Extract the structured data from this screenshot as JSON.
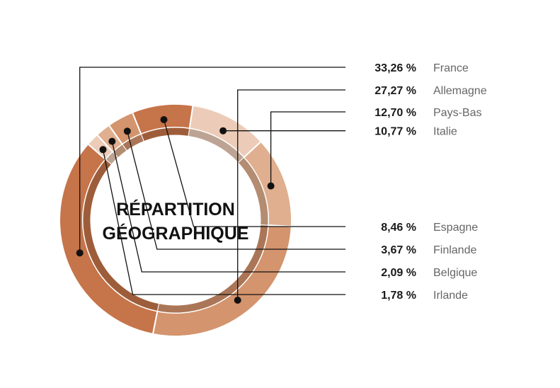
{
  "chart_data": {
    "type": "donut",
    "title_lines": [
      "RÉPARTITION",
      "GÉOGRAPHIQUE"
    ],
    "slices": [
      {
        "label": "France",
        "value": 33.26,
        "value_label": "33,26 %",
        "color": "#c67449"
      },
      {
        "label": "Allemagne",
        "value": 27.27,
        "value_label": "27,27 %",
        "color": "#d4946d"
      },
      {
        "label": "Pays-Bas",
        "value": 12.7,
        "value_label": "12,70 %",
        "color": "#e0af8f"
      },
      {
        "label": "Italie",
        "value": 10.77,
        "value_label": "10,77 %",
        "color": "#ecccb8"
      },
      {
        "label": "Espagne",
        "value": 8.46,
        "value_label": "8,46 %",
        "color": "#c67449"
      },
      {
        "label": "Finlande",
        "value": 3.67,
        "value_label": "3,67 %",
        "color": "#d4946d"
      },
      {
        "label": "Belgique",
        "value": 2.09,
        "value_label": "2,09 %",
        "color": "#e0af8f"
      },
      {
        "label": "Irlande",
        "value": 1.78,
        "value_label": "1,78 %",
        "color": "#ecccb8"
      }
    ]
  }
}
